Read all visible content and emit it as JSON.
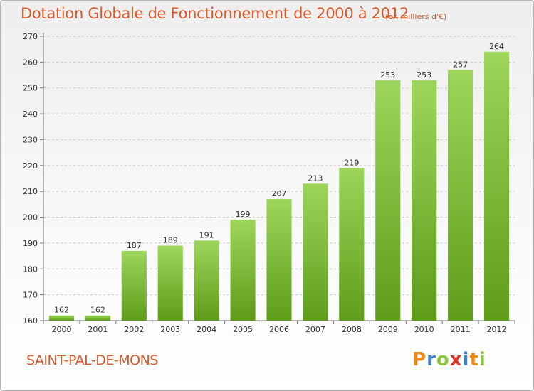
{
  "title": "Dotation Globale de Fonctionnement de 2000 à 2012",
  "unit_note": "(en milliers d'€)",
  "commune": "SAINT-PAL-DE-MONS",
  "logo": {
    "text": "Proxiti",
    "letters": [
      {
        "ch": "P",
        "color": "#f08a1c"
      },
      {
        "ch": "r",
        "color": "#3a86c8"
      },
      {
        "ch": "o",
        "color": "#8cc63f"
      },
      {
        "ch": "x",
        "color": "#e5332a"
      },
      {
        "ch": "i",
        "color": "#3a86c8"
      },
      {
        "ch": "t",
        "color": "#f08a1c"
      },
      {
        "ch": "i",
        "color": "#8cc63f"
      }
    ]
  },
  "colors": {
    "accent": "#d65a2c",
    "bar_top": "#9dd65a",
    "bar_bottom": "#5e9c1a",
    "grid": "#c8c8c8"
  },
  "chart_data": {
    "type": "bar",
    "categories": [
      "2000",
      "2001",
      "2002",
      "2003",
      "2004",
      "2005",
      "2006",
      "2007",
      "2008",
      "2009",
      "2010",
      "2011",
      "2012"
    ],
    "values": [
      162,
      162,
      187,
      189,
      191,
      199,
      207,
      213,
      219,
      253,
      253,
      257,
      264
    ],
    "ylim": [
      160,
      270
    ],
    "yticks": [
      160,
      170,
      180,
      190,
      200,
      210,
      220,
      230,
      240,
      250,
      260,
      270
    ],
    "grid": true,
    "data_labels": true
  }
}
